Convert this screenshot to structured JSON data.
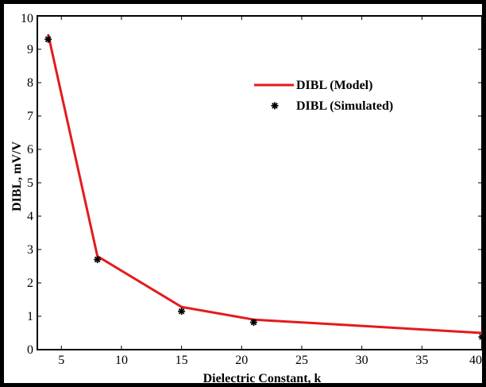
{
  "chart_data": {
    "type": "line",
    "title": "",
    "xlabel": "Dielectric Constant, k",
    "ylabel": "DIBL, mV/V",
    "xlim": [
      3,
      40
    ],
    "ylim": [
      0,
      10
    ],
    "xticks": [
      5,
      10,
      15,
      20,
      25,
      30,
      35,
      40
    ],
    "yticks": [
      0,
      1,
      2,
      3,
      4,
      5,
      6,
      7,
      8,
      9,
      10
    ],
    "grid": false,
    "legend_position": "top-right",
    "series": [
      {
        "name": "DIBL (Model)",
        "style": "line",
        "color": "#e41a1c",
        "x": [
          3.9,
          8,
          15,
          21,
          40
        ],
        "y": [
          9.45,
          2.8,
          1.28,
          0.9,
          0.5
        ]
      },
      {
        "name": "DIBL (Simulated)",
        "style": "marker",
        "marker": "asterisk",
        "color": "#000000",
        "x": [
          3.9,
          8,
          15,
          21,
          40
        ],
        "y": [
          9.3,
          2.7,
          1.15,
          0.82,
          0.38
        ]
      }
    ]
  }
}
